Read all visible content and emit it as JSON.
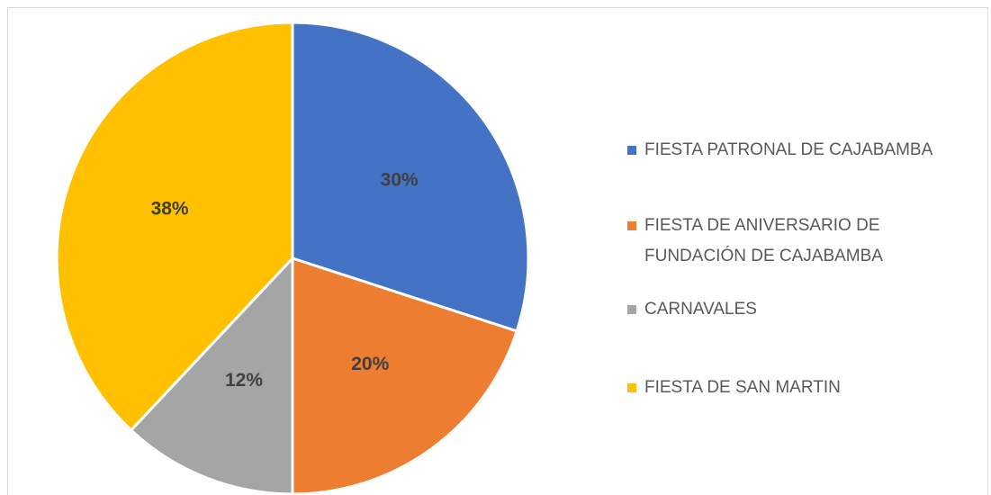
{
  "chart_data": {
    "type": "pie",
    "categories": [
      "FIESTA PATRONAL DE CAJABAMBA",
      "FIESTA DE ANIVERSARIO DE FUNDACIÓN DE CAJABAMBA",
      "CARNAVALES",
      "FIESTA DE SAN MARTIN"
    ],
    "values": [
      30,
      20,
      12,
      38
    ],
    "value_labels": [
      "30%",
      "20%",
      "12%",
      "38%"
    ],
    "colors": [
      "#4472c4",
      "#ed7d31",
      "#a5a5a5",
      "#ffc000"
    ],
    "legend": "right"
  }
}
